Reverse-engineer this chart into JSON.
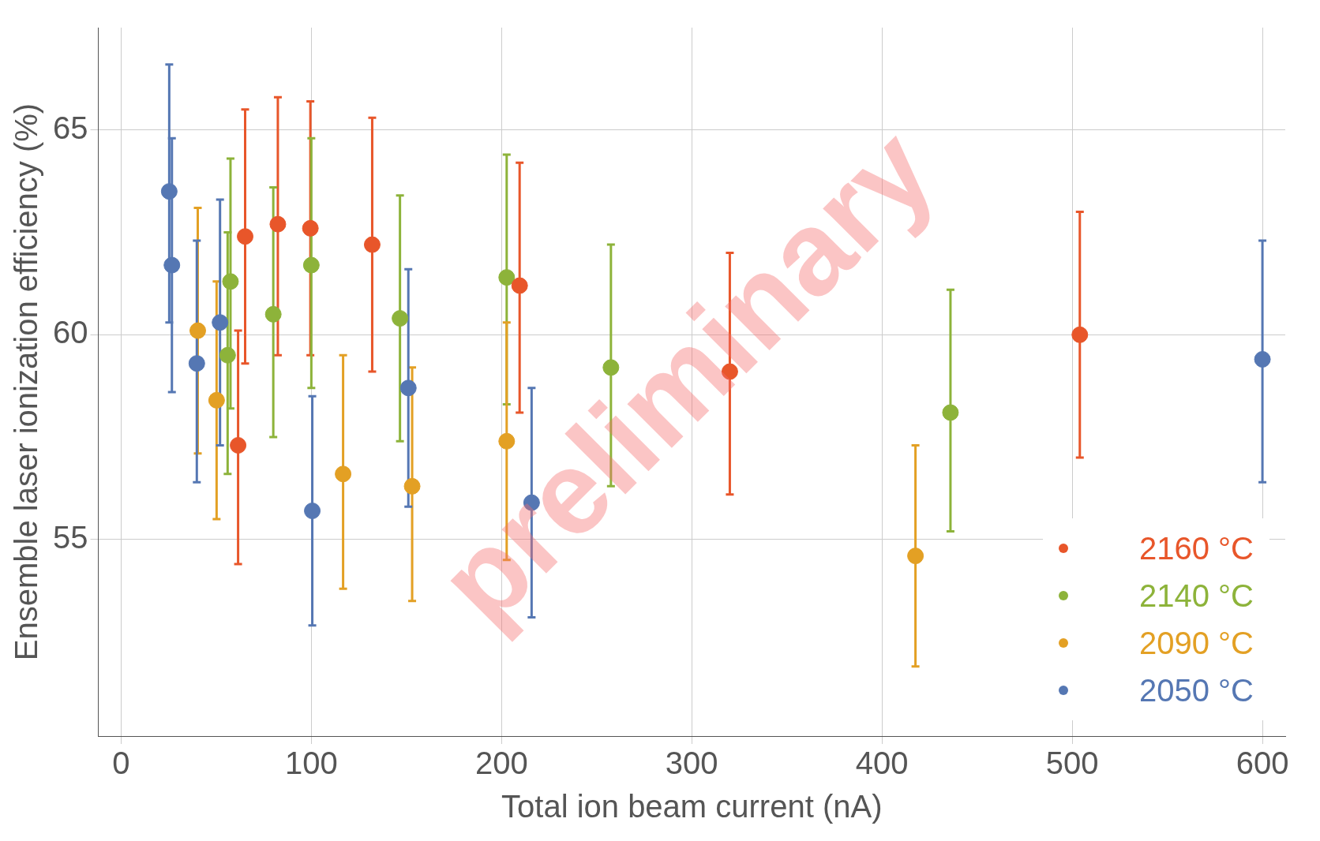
{
  "chart_data": {
    "type": "scatter",
    "xlabel": "Total ion beam current (nA)",
    "ylabel": "Ensemble laser ionization efficiency (%)",
    "xlim": [
      -12,
      612
    ],
    "ylim": [
      50.2,
      67.5
    ],
    "xticks": [
      0,
      100,
      200,
      300,
      400,
      500,
      600
    ],
    "yticks": [
      55,
      60,
      65
    ],
    "grid": true,
    "legend": "bottom right",
    "marker": "circle",
    "annotations": [
      "preliminary"
    ],
    "series": [
      {
        "name": "2160 °C",
        "color": "#e8562a",
        "x": [
          61.5,
          65.2,
          82.4,
          99.5,
          132,
          209.5,
          320,
          504
        ],
        "values": [
          57.3,
          62.4,
          62.7,
          62.6,
          62.2,
          61.2,
          59.1,
          60.0
        ],
        "errors": [
          [
            54.4,
            60.1
          ],
          [
            59.3,
            65.5
          ],
          [
            59.5,
            65.8
          ],
          [
            59.5,
            65.7
          ],
          [
            59.1,
            65.3
          ],
          [
            58.1,
            64.2
          ],
          [
            56.1,
            62.0
          ],
          [
            57.0,
            63.0
          ]
        ]
      },
      {
        "name": "2140 °C",
        "color": "#8db33a",
        "x": [
          56,
          57.5,
          80,
          100,
          146.6,
          202.7,
          257.5,
          436
        ],
        "values": [
          59.5,
          61.3,
          60.5,
          61.7,
          60.4,
          61.4,
          59.2,
          58.1
        ],
        "errors": [
          [
            56.6,
            62.5
          ],
          [
            58.2,
            64.3
          ],
          [
            57.5,
            63.6
          ],
          [
            58.7,
            64.8
          ],
          [
            57.4,
            63.4
          ],
          [
            58.3,
            64.4
          ],
          [
            56.3,
            62.2
          ],
          [
            55.2,
            61.1
          ]
        ]
      },
      {
        "name": "2090 °C",
        "color": "#e3a024",
        "x": [
          40.3,
          50.2,
          116.7,
          153,
          202.7,
          417.6
        ],
        "values": [
          60.1,
          58.4,
          56.6,
          56.3,
          57.4,
          54.6
        ],
        "errors": [
          [
            57.1,
            63.1
          ],
          [
            55.5,
            61.3
          ],
          [
            53.8,
            59.5
          ],
          [
            53.5,
            59.2
          ],
          [
            54.5,
            60.3
          ],
          [
            51.9,
            57.3
          ]
        ]
      },
      {
        "name": "2050 °C",
        "color": "#5577b3",
        "x": [
          25.3,
          26.7,
          39.8,
          52,
          100.5,
          151,
          215.8,
          600
        ],
        "values": [
          63.5,
          61.7,
          59.3,
          60.3,
          55.7,
          58.7,
          55.9,
          59.4
        ],
        "errors": [
          [
            60.3,
            66.6
          ],
          [
            58.6,
            64.8
          ],
          [
            56.4,
            62.3
          ],
          [
            57.3,
            63.3
          ],
          [
            52.9,
            58.5
          ],
          [
            55.8,
            61.6
          ],
          [
            53.1,
            58.7
          ],
          [
            56.4,
            62.3
          ]
        ]
      }
    ]
  }
}
